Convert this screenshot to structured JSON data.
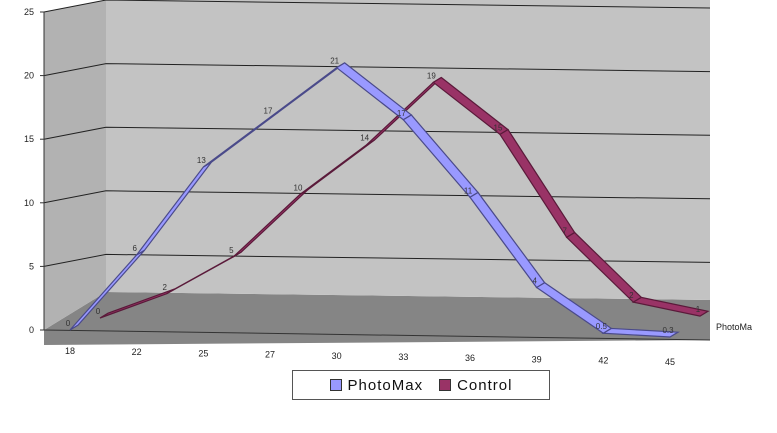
{
  "chart_data": {
    "type": "line",
    "categories": [
      "18",
      "22",
      "25",
      "27",
      "30",
      "33",
      "36",
      "39",
      "42",
      "45"
    ],
    "series": [
      {
        "name": "PhotoMax",
        "values": [
          0,
          6,
          13,
          17,
          21,
          17,
          11,
          4,
          0.5,
          0.3
        ]
      },
      {
        "name": "Control",
        "values": [
          0,
          2,
          5,
          10,
          14,
          19,
          15,
          7,
          2,
          1
        ]
      }
    ],
    "ylim": [
      0,
      25
    ],
    "yticks": [
      "0",
      "5",
      "10",
      "15",
      "20",
      "25"
    ],
    "depth_axis_label": "PhotoMa",
    "grid": true,
    "style": "3d",
    "legend_position": "bottom",
    "colors": {
      "PhotoMax": "#9999ff",
      "PhotoMax_dark": "#4a4a8a",
      "Control": "#993366",
      "Control_dark": "#5a1a3a",
      "wall": "#c0c0c0",
      "floor": "#808080"
    }
  }
}
